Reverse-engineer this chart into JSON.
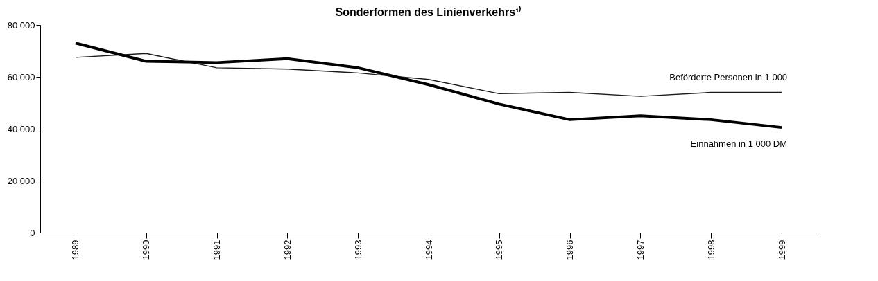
{
  "chart_data": {
    "type": "line",
    "title": "Sonderformen des Linienverkehrs¹⁾",
    "categories": [
      "1989",
      "1990",
      "1991",
      "1992",
      "1993",
      "1994",
      "1995",
      "1996",
      "1997",
      "1998",
      "1999"
    ],
    "series": [
      {
        "name": "Beförderte Personen in 1 000",
        "color": "#1a1a1a",
        "values": [
          67500,
          69000,
          63500,
          63000,
          61500,
          59000,
          53500,
          54000,
          52500,
          54000,
          54000
        ]
      },
      {
        "name": "Einnahmen in 1 000 DM",
        "color": "#000000",
        "values": [
          73000,
          66000,
          65500,
          67000,
          63500,
          57000,
          49500,
          43500,
          45000,
          43500,
          40500
        ]
      }
    ],
    "ylim": [
      0,
      80000
    ],
    "yticks": [
      {
        "value": 0,
        "label": "0"
      },
      {
        "value": 20000,
        "label": "20 000"
      },
      {
        "value": 40000,
        "label": "40 000"
      },
      {
        "value": 60000,
        "label": "60 000"
      },
      {
        "value": 80000,
        "label": "80 000"
      }
    ],
    "grid": false,
    "legend": false,
    "marker": "none",
    "line_style": "solid"
  }
}
